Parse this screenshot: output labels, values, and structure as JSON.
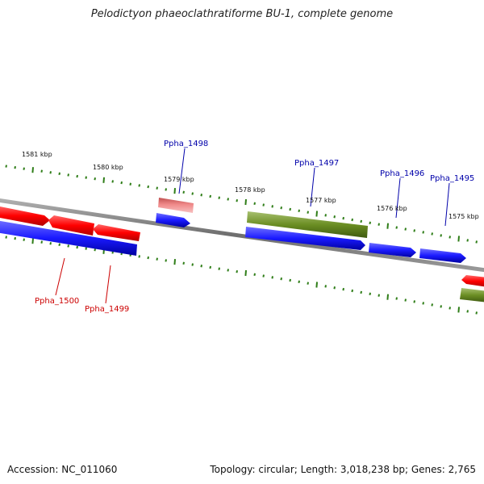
{
  "header": {
    "title": "Pelodictyon phaeoclathratiforme BU-1, complete genome"
  },
  "footer": {
    "accession": "Accession: NC_011060",
    "summary": "Topology: circular; Length: 3,018,238 bp; Genes: 2,765"
  },
  "colors": {
    "backbone": "#888888",
    "tick": "#2e7d17",
    "forward_cds": "#ff0000",
    "forward_cds_faded": "#f08a8a",
    "reverse_cds": "#1a1aff",
    "rna_gene": "#6b8e23",
    "label_forward": "#0000aa",
    "label_reverse": "#cc0000"
  },
  "tick_labels": [
    {
      "id": "1581",
      "text": "1581 kbp"
    },
    {
      "id": "1580",
      "text": "1580 kbp"
    },
    {
      "id": "1579",
      "text": "1579 kbp"
    },
    {
      "id": "1578",
      "text": "1578 kbp"
    },
    {
      "id": "1577",
      "text": "1577 kbp"
    },
    {
      "id": "1576",
      "text": "1576 kbp"
    },
    {
      "id": "1575",
      "text": "1575 kbp"
    }
  ],
  "gene_labels": [
    {
      "id": "ppha_1498",
      "text": "Ppha_1498",
      "strand": "top"
    },
    {
      "id": "ppha_1497",
      "text": "Ppha_1497",
      "strand": "top"
    },
    {
      "id": "ppha_1496",
      "text": "Ppha_1496",
      "strand": "top"
    },
    {
      "id": "ppha_1495",
      "text": "Ppha_1495",
      "strand": "top"
    },
    {
      "id": "ppha_1500",
      "text": "Ppha_1500",
      "strand": "bottom"
    },
    {
      "id": "ppha_1499",
      "text": "Ppha_1499",
      "strand": "bottom"
    }
  ]
}
